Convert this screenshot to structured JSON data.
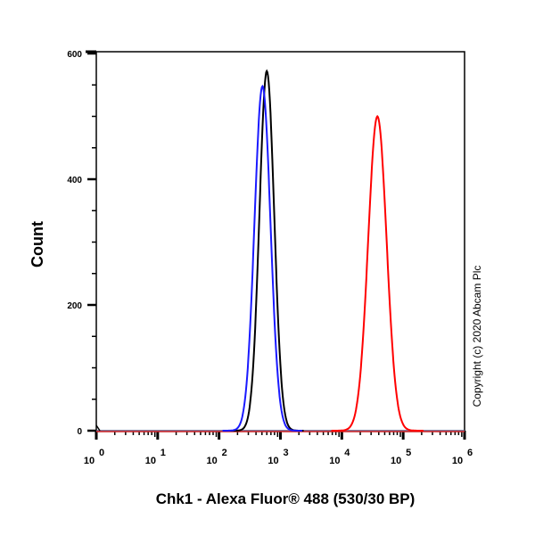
{
  "chart_data": {
    "type": "line",
    "title": "",
    "xlabel": "Chk1 - Alexa Fluor® 488 (530/30 BP)",
    "ylabel": "Count",
    "xscale": "log",
    "xlim": [
      1,
      1000000
    ],
    "ylim": [
      0,
      600
    ],
    "x_ticks": [
      "10^0",
      "10^1",
      "10^2",
      "10^3",
      "10^4",
      "10^5",
      "10^6"
    ],
    "y_ticks": [
      0,
      200,
      400,
      600
    ],
    "grid": false,
    "legend": null,
    "annotation": "Copyright (c) 2020 Abcam Plc",
    "series": [
      {
        "name": "blue histogram",
        "color": "#1a1aff",
        "peak_x": 510,
        "peak_count": 548,
        "range_x": [
          150,
          1100
        ]
      },
      {
        "name": "black histogram",
        "color": "#000000",
        "peak_x": 600,
        "peak_count": 572,
        "range_x": [
          180,
          1300
        ]
      },
      {
        "name": "red histogram",
        "color": "#ff0000",
        "peak_x": 38000,
        "peak_count": 500,
        "range_x": [
          10000,
          120000
        ]
      }
    ]
  },
  "labels": {
    "ylabel": "Count",
    "xlabel": "Chk1 - Alexa Fluor® 488 (530/30 BP)",
    "copyright": "Copyright (c) 2020 Abcam Plc"
  }
}
